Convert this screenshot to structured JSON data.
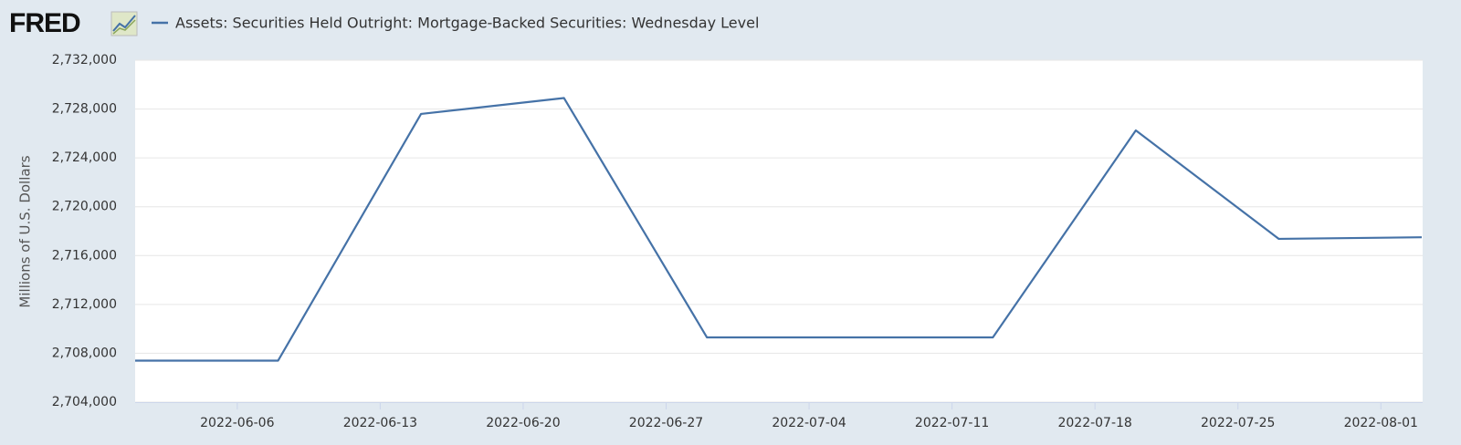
{
  "chart_data": {
    "type": "line",
    "logo": "FRED",
    "y_label": "Millions of U.S. Dollars",
    "x": [
      "2022-06-01",
      "2022-06-08",
      "2022-06-15",
      "2022-06-22",
      "2022-06-29",
      "2022-07-06",
      "2022-07-13",
      "2022-07-20",
      "2022-07-27",
      "2022-08-03"
    ],
    "series": [
      {
        "name": "Assets: Securities Held Outright: Mortgage-Backed Securities: Wednesday Level",
        "color": "#4572a7",
        "values": [
          2707400,
          2707400,
          2727600,
          2728900,
          2709300,
          2709300,
          2709300,
          2726250,
          2717370,
          2717500
        ]
      }
    ],
    "xlim": [
      "2022-06-01",
      "2022-08-03"
    ],
    "xticks": [
      "2022-06-06",
      "2022-06-13",
      "2022-06-20",
      "2022-06-27",
      "2022-07-04",
      "2022-07-11",
      "2022-07-18",
      "2022-07-25",
      "2022-08-01"
    ],
    "ylim": [
      2704000,
      2732000
    ],
    "yticks": [
      {
        "value": 2704000,
        "label": "2,704,000"
      },
      {
        "value": 2708000,
        "label": "2,708,000"
      },
      {
        "value": 2712000,
        "label": "2,712,000"
      },
      {
        "value": 2716000,
        "label": "2,716,000"
      },
      {
        "value": 2720000,
        "label": "2,720,000"
      },
      {
        "value": 2724000,
        "label": "2,724,000"
      },
      {
        "value": 2728000,
        "label": "2,728,000"
      },
      {
        "value": 2732000,
        "label": "2,732,000"
      }
    ],
    "grid": true
  }
}
